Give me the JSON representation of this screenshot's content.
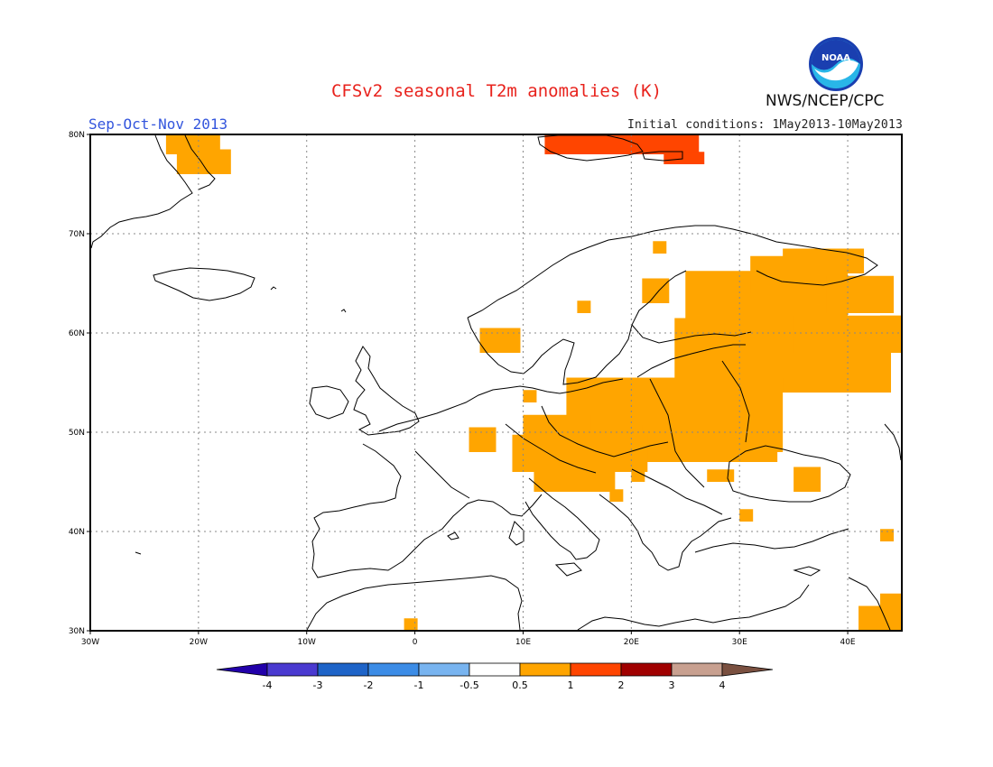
{
  "figure": {
    "title": "CFSv2 seasonal T2m anomalies (K)",
    "season": "Sep-Oct-Nov 2013",
    "initial_conditions": "Initial conditions: 1May2013-10May2013",
    "agency": "NWS/NCEP/CPC",
    "logo_text": "NOAA"
  },
  "map": {
    "region": "Europe",
    "lon_range": [
      -30,
      45
    ],
    "lat_range": [
      30,
      80
    ],
    "lon_ticks": [
      {
        "v": -30,
        "label": "30W"
      },
      {
        "v": -20,
        "label": "20W"
      },
      {
        "v": -10,
        "label": "10W"
      },
      {
        "v": 0,
        "label": "0"
      },
      {
        "v": 10,
        "label": "10E"
      },
      {
        "v": 20,
        "label": "20E"
      },
      {
        "v": 30,
        "label": "30E"
      },
      {
        "v": 40,
        "label": "40E"
      }
    ],
    "lat_ticks": [
      {
        "v": 30,
        "label": "30N"
      },
      {
        "v": 40,
        "label": "40N"
      },
      {
        "v": 50,
        "label": "50N"
      },
      {
        "v": 60,
        "label": "60N"
      },
      {
        "v": 70,
        "label": "70N"
      },
      {
        "v": 80,
        "label": "80N"
      }
    ],
    "colors": {
      "warm1": "#ffa500",
      "warm2": "#ff4500",
      "coast": "#000000",
      "grid": "#888888"
    }
  },
  "colorbar": {
    "labels": [
      "-4",
      "-3",
      "-2",
      "-1",
      "-0.5",
      "0.5",
      "1",
      "2",
      "3",
      "4"
    ],
    "colors": [
      "#2200aa",
      "#4a3ad0",
      "#1e64c8",
      "#3c8ce6",
      "#78b4f0",
      "#ffffff",
      "#ffa500",
      "#ff4500",
      "#a00000",
      "#c8a090",
      "#7a5040"
    ]
  },
  "chart_data": {
    "type": "heatmap",
    "title": "CFSv2 seasonal T2m anomalies (K)",
    "units": "K",
    "xlabel": "",
    "ylabel": "",
    "xlim": [
      -30,
      45
    ],
    "ylim": [
      30,
      80
    ],
    "cell_size_deg": 1.25,
    "description_note": "",
    "regions": [
      {
        "class": "0.5 to 1",
        "cells": [
          [
            -23,
            78,
            4,
            2
          ],
          [
            -22,
            76,
            4,
            2
          ],
          [
            -1,
            30,
            1,
            1
          ],
          [
            6,
            58,
            3,
            2
          ],
          [
            10,
            53,
            1,
            1
          ],
          [
            15,
            62,
            1,
            1
          ],
          [
            21,
            63,
            2,
            2
          ],
          [
            22,
            68,
            1,
            1
          ],
          [
            25,
            60,
            12,
            5
          ],
          [
            31,
            64,
            6,
            3
          ],
          [
            34,
            66,
            6,
            2
          ],
          [
            38,
            62,
            5,
            3
          ],
          [
            24,
            54,
            16,
            6
          ],
          [
            35,
            58,
            8,
            3
          ],
          [
            43,
            58,
            2,
            3
          ],
          [
            44,
            59,
            1,
            1
          ],
          [
            14,
            48,
            16,
            6
          ],
          [
            21,
            47,
            10,
            3
          ],
          [
            10,
            48,
            5,
            3
          ],
          [
            5,
            48,
            2,
            2
          ],
          [
            9,
            46,
            10,
            3
          ],
          [
            11,
            44,
            6,
            2
          ],
          [
            20,
            45,
            1,
            1
          ],
          [
            27,
            45,
            2,
            1
          ],
          [
            18,
            43,
            1,
            1
          ],
          [
            30,
            41,
            1,
            1
          ],
          [
            35,
            44,
            2,
            2
          ],
          [
            43,
            39,
            1,
            1
          ],
          [
            43,
            30,
            3,
            3
          ],
          [
            41,
            30,
            3,
            2
          ]
        ]
      },
      {
        "class": "1 to 2",
        "cells": [
          [
            12,
            78,
            8,
            3
          ],
          [
            20,
            78,
            5,
            2
          ],
          [
            23,
            77,
            3,
            1
          ]
        ]
      }
    ]
  }
}
